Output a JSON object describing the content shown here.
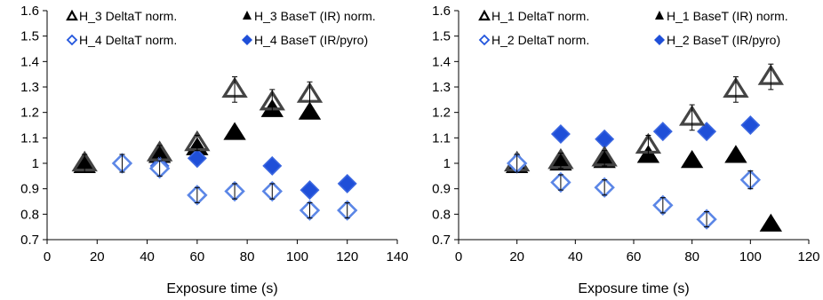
{
  "chart_data": [
    {
      "type": "scatter",
      "xlabel": "Exposure time (s)",
      "ylabel": "",
      "xlim": [
        0,
        140
      ],
      "ylim": [
        0.7,
        1.6
      ],
      "xticks": [
        "0",
        "20",
        "40",
        "60",
        "80",
        "100",
        "120",
        "140"
      ],
      "yticks": [
        "0.7",
        "0.8",
        "0.9",
        "1",
        "1.1",
        "1.2",
        "1.3",
        "1.4",
        "1.5",
        "1.6"
      ],
      "grid": false,
      "legend": "top, 2 columns",
      "series": [
        {
          "name": "H_3 DeltaT norm.",
          "marker": "triangle-open",
          "color": "#000000",
          "x": [
            15,
            45,
            60,
            75,
            90,
            105
          ],
          "y": [
            1.0,
            1.04,
            1.08,
            1.29,
            1.24,
            1.27
          ],
          "err": [
            0.035,
            0.03,
            0.03,
            0.05,
            0.05,
            0.05
          ]
        },
        {
          "name": "H_3 BaseT (IR) norm.",
          "marker": "triangle-filled",
          "color": "#000000",
          "x": [
            15,
            45,
            60,
            75,
            90,
            105
          ],
          "y": [
            0.99,
            1.03,
            1.06,
            1.12,
            1.21,
            1.2
          ],
          "err": []
        },
        {
          "name": "H_4 DeltaT norm.",
          "marker": "diamond-open",
          "color": "#2255dd",
          "x": [
            30,
            45,
            60,
            75,
            90,
            105,
            120
          ],
          "y": [
            1.0,
            0.98,
            0.875,
            0.89,
            0.89,
            0.815,
            0.815
          ],
          "err": [
            0.035,
            0.03,
            0.03,
            0.03,
            0.03,
            0.03,
            0.03
          ]
        },
        {
          "name": "H_4 BaseT (IR/pyro)",
          "marker": "diamond-filled",
          "color": "#1f4fd8",
          "x": [
            30,
            45,
            60,
            75,
            90,
            105,
            120
          ],
          "y": [
            1.0,
            0.99,
            1.02,
            0.89,
            0.99,
            0.895,
            0.92
          ],
          "err": []
        }
      ]
    },
    {
      "type": "scatter",
      "xlabel": "Exposure time (s)",
      "ylabel": "",
      "xlim": [
        0,
        120
      ],
      "ylim": [
        0.7,
        1.6
      ],
      "xticks": [
        "0",
        "20",
        "40",
        "60",
        "80",
        "100",
        "120"
      ],
      "yticks": [
        "0.7",
        "0.8",
        "0.9",
        "1",
        "1.1",
        "1.2",
        "1.3",
        "1.4",
        "1.5",
        "1.6"
      ],
      "grid": false,
      "legend": "top, 2 columns",
      "series": [
        {
          "name": "H_1 DeltaT norm.",
          "marker": "triangle-open",
          "color": "#000000",
          "x": [
            20,
            35,
            50,
            65,
            80,
            95,
            107
          ],
          "y": [
            1.0,
            1.01,
            1.02,
            1.07,
            1.18,
            1.29,
            1.34
          ],
          "err": [
            0.035,
            0.03,
            0.03,
            0.04,
            0.05,
            0.05,
            0.05
          ]
        },
        {
          "name": "H_1 BaseT (IR) norm.",
          "marker": "triangle-filled",
          "color": "#000000",
          "x": [
            20,
            35,
            50,
            65,
            80,
            95,
            107
          ],
          "y": [
            0.99,
            1.0,
            1.01,
            1.03,
            1.01,
            1.03,
            0.76
          ],
          "err": []
        },
        {
          "name": "H_2 DeltaT norm.",
          "marker": "diamond-open",
          "color": "#2255dd",
          "x": [
            20,
            35,
            50,
            70,
            85,
            100
          ],
          "y": [
            1.0,
            0.925,
            0.905,
            0.835,
            0.78,
            0.935
          ],
          "err": [
            0.035,
            0.03,
            0.03,
            0.03,
            0.03,
            0.035
          ]
        },
        {
          "name": "H_2 BaseT (IR/pyro)",
          "marker": "diamond-filled",
          "color": "#1f4fd8",
          "x": [
            20,
            35,
            50,
            70,
            85,
            100
          ],
          "y": [
            1.0,
            1.115,
            1.095,
            1.125,
            1.125,
            1.15
          ],
          "err": []
        }
      ]
    }
  ]
}
